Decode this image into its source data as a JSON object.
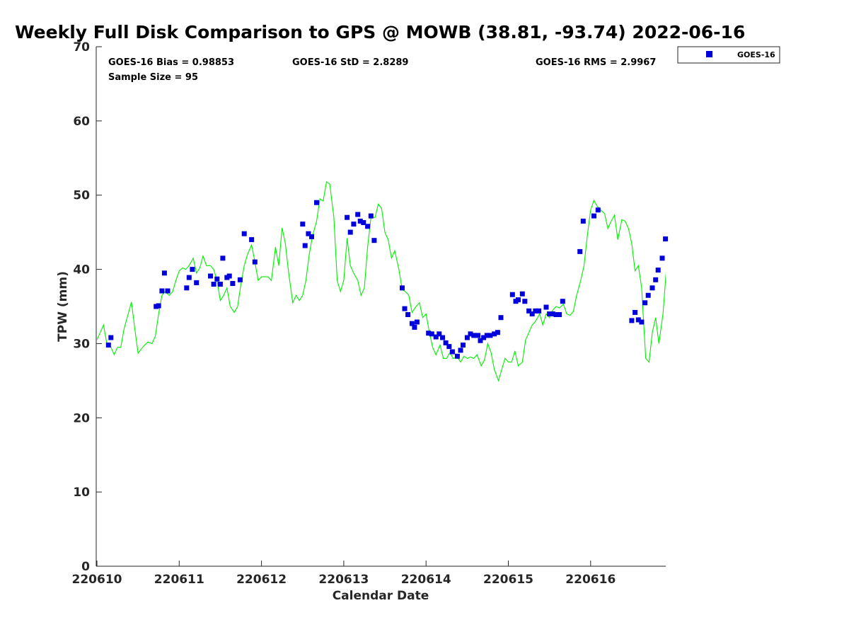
{
  "chart_data": {
    "type": "scatter",
    "title": "Weekly Full Disk Comparison to GPS @ MOWB (38.81, -93.74) 2022-06-16",
    "xlabel": "Calendar Date",
    "ylabel": "TPW (mm)",
    "xlim": [
      0,
      6.95
    ],
    "ylim": [
      0,
      70
    ],
    "x_ticks": [
      0,
      1,
      2,
      3,
      4,
      5,
      6
    ],
    "x_tick_labels": [
      "220610",
      "220611",
      "220612",
      "220613",
      "220614",
      "220615",
      "220616"
    ],
    "y_ticks": [
      0,
      10,
      20,
      30,
      40,
      50,
      60,
      70
    ],
    "y_tick_labels": [
      "0",
      "10",
      "20",
      "30",
      "40",
      "50",
      "60",
      "70"
    ],
    "grid": false,
    "legend_position": "top-right-outside",
    "stats": {
      "bias": "GOES-16 Bias = 0.98853",
      "std": "GOES-16 StD = 2.8289",
      "rms": "GOES-16 RMS = 2.9967",
      "sample": "Sample Size = 95"
    },
    "series": [
      {
        "name": "GOES-16",
        "kind": "scatter",
        "color": "#0000dd",
        "points": [
          [
            0.14,
            29.8
          ],
          [
            0.17,
            30.8
          ],
          [
            0.72,
            35.0
          ],
          [
            0.75,
            35.1
          ],
          [
            0.79,
            37.1
          ],
          [
            0.82,
            39.5
          ],
          [
            0.86,
            37.1
          ],
          [
            1.09,
            37.5
          ],
          [
            1.12,
            38.9
          ],
          [
            1.16,
            40.0
          ],
          [
            1.21,
            38.2
          ],
          [
            1.38,
            39.1
          ],
          [
            1.42,
            38.0
          ],
          [
            1.46,
            38.7
          ],
          [
            1.5,
            38.0
          ],
          [
            1.53,
            41.5
          ],
          [
            1.58,
            38.9
          ],
          [
            1.61,
            39.1
          ],
          [
            1.65,
            38.1
          ],
          [
            1.74,
            38.6
          ],
          [
            1.79,
            44.8
          ],
          [
            1.88,
            44.0
          ],
          [
            1.92,
            41.0
          ],
          [
            2.5,
            46.1
          ],
          [
            2.53,
            43.2
          ],
          [
            2.57,
            44.8
          ],
          [
            2.61,
            44.4
          ],
          [
            2.67,
            49.0
          ],
          [
            3.04,
            47.0
          ],
          [
            3.08,
            45.0
          ],
          [
            3.12,
            46.1
          ],
          [
            3.17,
            47.4
          ],
          [
            3.2,
            46.5
          ],
          [
            3.24,
            46.3
          ],
          [
            3.29,
            45.8
          ],
          [
            3.33,
            47.2
          ],
          [
            3.37,
            43.9
          ],
          [
            3.71,
            37.5
          ],
          [
            3.74,
            34.7
          ],
          [
            3.78,
            33.9
          ],
          [
            3.83,
            32.7
          ],
          [
            3.86,
            32.2
          ],
          [
            3.89,
            32.9
          ],
          [
            4.03,
            31.4
          ],
          [
            4.07,
            31.3
          ],
          [
            4.12,
            30.9
          ],
          [
            4.16,
            31.3
          ],
          [
            4.2,
            30.8
          ],
          [
            4.24,
            30.1
          ],
          [
            4.28,
            29.6
          ],
          [
            4.32,
            28.9
          ],
          [
            4.38,
            28.3
          ],
          [
            4.42,
            29.1
          ],
          [
            4.45,
            29.8
          ],
          [
            4.5,
            30.8
          ],
          [
            4.54,
            31.3
          ],
          [
            4.58,
            31.1
          ],
          [
            4.63,
            31.1
          ],
          [
            4.66,
            30.4
          ],
          [
            4.7,
            30.8
          ],
          [
            4.74,
            31.1
          ],
          [
            4.78,
            31.1
          ],
          [
            4.83,
            31.3
          ],
          [
            4.87,
            31.5
          ],
          [
            4.91,
            33.5
          ],
          [
            5.05,
            36.6
          ],
          [
            5.09,
            35.7
          ],
          [
            5.12,
            35.9
          ],
          [
            5.17,
            36.7
          ],
          [
            5.2,
            35.7
          ],
          [
            5.25,
            34.4
          ],
          [
            5.29,
            34.0
          ],
          [
            5.33,
            34.4
          ],
          [
            5.37,
            34.4
          ],
          [
            5.46,
            34.9
          ],
          [
            5.5,
            34.0
          ],
          [
            5.54,
            34.0
          ],
          [
            5.58,
            33.9
          ],
          [
            5.62,
            33.9
          ],
          [
            5.66,
            35.7
          ],
          [
            5.87,
            42.4
          ],
          [
            5.91,
            46.5
          ],
          [
            6.04,
            47.2
          ],
          [
            6.09,
            48.0
          ],
          [
            6.5,
            33.1
          ],
          [
            6.54,
            34.2
          ],
          [
            6.58,
            33.2
          ],
          [
            6.62,
            32.9
          ],
          [
            6.66,
            35.5
          ],
          [
            6.7,
            36.5
          ],
          [
            6.75,
            37.5
          ],
          [
            6.79,
            38.6
          ],
          [
            6.82,
            39.9
          ],
          [
            6.87,
            41.5
          ],
          [
            6.91,
            44.1
          ]
        ]
      },
      {
        "name": "",
        "kind": "line",
        "color": "#00ee00",
        "points": [
          [
            0.0,
            30.5
          ],
          [
            0.04,
            31.5
          ],
          [
            0.08,
            32.5
          ],
          [
            0.12,
            30.0
          ],
          [
            0.17,
            29.5
          ],
          [
            0.21,
            28.5
          ],
          [
            0.25,
            29.5
          ],
          [
            0.29,
            29.5
          ],
          [
            0.33,
            32.0
          ],
          [
            0.38,
            34.0
          ],
          [
            0.42,
            35.6
          ],
          [
            0.46,
            32.0
          ],
          [
            0.5,
            28.7
          ],
          [
            0.54,
            29.3
          ],
          [
            0.58,
            29.8
          ],
          [
            0.62,
            30.2
          ],
          [
            0.67,
            30.0
          ],
          [
            0.71,
            31.0
          ],
          [
            0.75,
            34.0
          ],
          [
            0.79,
            36.5
          ],
          [
            0.83,
            37.0
          ],
          [
            0.88,
            36.5
          ],
          [
            0.92,
            37.0
          ],
          [
            0.96,
            38.5
          ],
          [
            1.0,
            39.8
          ],
          [
            1.04,
            40.2
          ],
          [
            1.08,
            40.0
          ],
          [
            1.12,
            40.5
          ],
          [
            1.17,
            41.5
          ],
          [
            1.21,
            39.5
          ],
          [
            1.25,
            40.2
          ],
          [
            1.29,
            41.8
          ],
          [
            1.33,
            40.5
          ],
          [
            1.38,
            40.5
          ],
          [
            1.42,
            40.0
          ],
          [
            1.46,
            38.5
          ],
          [
            1.5,
            35.8
          ],
          [
            1.54,
            36.5
          ],
          [
            1.58,
            37.5
          ],
          [
            1.62,
            35.0
          ],
          [
            1.67,
            34.2
          ],
          [
            1.71,
            35.0
          ],
          [
            1.75,
            38.0
          ],
          [
            1.79,
            40.5
          ],
          [
            1.83,
            42.0
          ],
          [
            1.88,
            43.3
          ],
          [
            1.92,
            41.0
          ],
          [
            1.96,
            38.5
          ],
          [
            2.0,
            39.0
          ],
          [
            2.04,
            39.0
          ],
          [
            2.08,
            39.0
          ],
          [
            2.12,
            38.5
          ],
          [
            2.17,
            43.0
          ],
          [
            2.21,
            40.5
          ],
          [
            2.25,
            45.6
          ],
          [
            2.29,
            43.5
          ],
          [
            2.33,
            39.5
          ],
          [
            2.38,
            35.5
          ],
          [
            2.42,
            36.5
          ],
          [
            2.46,
            35.8
          ],
          [
            2.5,
            36.5
          ],
          [
            2.54,
            38.5
          ],
          [
            2.58,
            42.0
          ],
          [
            2.62,
            44.5
          ],
          [
            2.67,
            46.5
          ],
          [
            2.71,
            49.5
          ],
          [
            2.75,
            49.2
          ],
          [
            2.79,
            51.8
          ],
          [
            2.83,
            51.5
          ],
          [
            2.88,
            47.0
          ],
          [
            2.92,
            38.5
          ],
          [
            2.96,
            37.0
          ],
          [
            3.0,
            38.5
          ],
          [
            3.04,
            44.2
          ],
          [
            3.08,
            40.5
          ],
          [
            3.12,
            39.5
          ],
          [
            3.17,
            38.5
          ],
          [
            3.21,
            36.5
          ],
          [
            3.25,
            37.5
          ],
          [
            3.29,
            43.0
          ],
          [
            3.33,
            47.0
          ],
          [
            3.38,
            47.0
          ],
          [
            3.42,
            48.8
          ],
          [
            3.46,
            48.2
          ],
          [
            3.5,
            45.0
          ],
          [
            3.54,
            44.0
          ],
          [
            3.58,
            41.5
          ],
          [
            3.62,
            42.5
          ],
          [
            3.67,
            40.0
          ],
          [
            3.71,
            37.3
          ],
          [
            3.75,
            37.0
          ],
          [
            3.79,
            36.5
          ],
          [
            3.83,
            34.2
          ],
          [
            3.88,
            35.0
          ],
          [
            3.92,
            35.5
          ],
          [
            3.96,
            33.5
          ],
          [
            4.0,
            34.0
          ],
          [
            4.04,
            31.5
          ],
          [
            4.08,
            29.5
          ],
          [
            4.12,
            28.5
          ],
          [
            4.17,
            29.8
          ],
          [
            4.21,
            28.0
          ],
          [
            4.25,
            28.0
          ],
          [
            4.29,
            28.8
          ],
          [
            4.33,
            28.0
          ],
          [
            4.38,
            28.2
          ],
          [
            4.42,
            27.5
          ],
          [
            4.46,
            28.3
          ],
          [
            4.5,
            28.0
          ],
          [
            4.54,
            28.2
          ],
          [
            4.58,
            28.0
          ],
          [
            4.62,
            28.5
          ],
          [
            4.67,
            27.0
          ],
          [
            4.71,
            27.8
          ],
          [
            4.75,
            30.0
          ],
          [
            4.79,
            28.8
          ],
          [
            4.83,
            26.5
          ],
          [
            4.88,
            25.0
          ],
          [
            4.92,
            26.5
          ],
          [
            4.96,
            28.0
          ],
          [
            5.0,
            27.5
          ],
          [
            5.04,
            27.5
          ],
          [
            5.08,
            29.0
          ],
          [
            5.12,
            27.0
          ],
          [
            5.17,
            27.5
          ],
          [
            5.21,
            30.5
          ],
          [
            5.25,
            31.5
          ],
          [
            5.29,
            32.5
          ],
          [
            5.33,
            33.0
          ],
          [
            5.38,
            34.0
          ],
          [
            5.42,
            32.5
          ],
          [
            5.46,
            34.0
          ],
          [
            5.5,
            33.5
          ],
          [
            5.54,
            34.5
          ],
          [
            5.58,
            35.0
          ],
          [
            5.62,
            34.8
          ],
          [
            5.67,
            35.3
          ],
          [
            5.71,
            34.0
          ],
          [
            5.75,
            33.8
          ],
          [
            5.79,
            34.3
          ],
          [
            5.83,
            36.5
          ],
          [
            5.88,
            38.5
          ],
          [
            5.92,
            40.5
          ],
          [
            5.96,
            44.5
          ],
          [
            6.0,
            48.0
          ],
          [
            6.04,
            49.3
          ],
          [
            6.08,
            48.5
          ],
          [
            6.12,
            48.0
          ],
          [
            6.17,
            47.5
          ],
          [
            6.21,
            45.5
          ],
          [
            6.25,
            46.5
          ],
          [
            6.29,
            47.3
          ],
          [
            6.33,
            44.0
          ],
          [
            6.38,
            46.7
          ],
          [
            6.42,
            46.5
          ],
          [
            6.46,
            45.5
          ],
          [
            6.5,
            43.5
          ],
          [
            6.54,
            39.8
          ],
          [
            6.58,
            40.5
          ],
          [
            6.62,
            37.5
          ],
          [
            6.67,
            28.0
          ],
          [
            6.71,
            27.5
          ],
          [
            6.75,
            31.5
          ],
          [
            6.79,
            33.5
          ],
          [
            6.83,
            30.0
          ],
          [
            6.88,
            34.0
          ],
          [
            6.92,
            40.0
          ],
          [
            6.95,
            43.0
          ],
          [
            6.99,
            43.5
          ],
          [
            7.03,
            45.8
          ],
          [
            7.07,
            48.3
          ],
          [
            7.1,
            48.5
          ],
          [
            7.13,
            47.5
          ]
        ]
      }
    ]
  }
}
